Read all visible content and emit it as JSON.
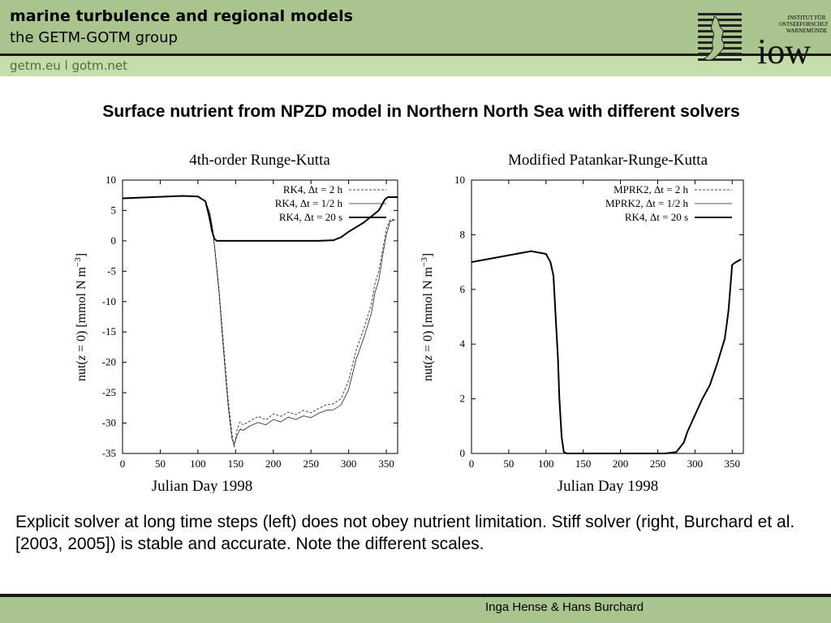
{
  "header": {
    "title": "marine turbulence and regional models",
    "subtitle": "the GETM-GOTM group",
    "links": "getm.eu   l   gotm.net"
  },
  "logo": {
    "text_line1": "INSTITUT FÜR",
    "text_line2": "OSTSEEFORSCHUNG",
    "text_line3": "WARNEMÜNDE",
    "wordmark": "iow"
  },
  "slide_title": "Surface nutrient from NPZD model in Northern North Sea with different solvers",
  "chart_data": [
    {
      "type": "line",
      "title": "4th-order Runge-Kutta",
      "xlabel": "Julian Day 1998",
      "ylabel": "nut(z = 0) [mmol N m^-3]",
      "xlim": [
        0,
        365
      ],
      "ylim": [
        -35,
        10
      ],
      "xticks": [
        0,
        50,
        100,
        150,
        200,
        250,
        300,
        350
      ],
      "yticks": [
        10,
        5,
        0,
        -5,
        -10,
        -15,
        -20,
        -25,
        -30,
        -35
      ],
      "grid": false,
      "legend_position": "top-right",
      "series": [
        {
          "name": "RK4, Δt = 2 h",
          "style": "dashed",
          "x": [
            0,
            40,
            80,
            100,
            110,
            116,
            120,
            124,
            128,
            132,
            136,
            140,
            145,
            148,
            152,
            156,
            160,
            170,
            180,
            190,
            200,
            210,
            220,
            230,
            240,
            250,
            260,
            270,
            280,
            290,
            300,
            310,
            320,
            330,
            335,
            340,
            345,
            350,
            355,
            362
          ],
          "y": [
            7.0,
            7.2,
            7.4,
            7.3,
            6.5,
            4.5,
            1.5,
            -3.0,
            -8.0,
            -14.0,
            -20.0,
            -26.0,
            -31.5,
            -34.0,
            -31.0,
            -29.8,
            -30.3,
            -29.6,
            -28.9,
            -29.5,
            -28.5,
            -28.9,
            -28.2,
            -28.6,
            -27.9,
            -28.3,
            -27.6,
            -27.0,
            -26.8,
            -26.0,
            -23.0,
            -18.0,
            -14.5,
            -10.5,
            -7.0,
            -5.0,
            -1.5,
            2.0,
            3.5,
            3.5
          ]
        },
        {
          "name": "RK4, Δt = 1/2 h",
          "style": "thin",
          "x": [
            0,
            40,
            80,
            100,
            110,
            116,
            120,
            124,
            128,
            132,
            136,
            140,
            145,
            148,
            152,
            156,
            160,
            170,
            180,
            190,
            200,
            210,
            220,
            230,
            240,
            250,
            260,
            270,
            280,
            290,
            300,
            310,
            320,
            330,
            335,
            340,
            345,
            350,
            355,
            362
          ],
          "y": [
            7.0,
            7.2,
            7.4,
            7.3,
            6.5,
            4.5,
            1.5,
            -3.5,
            -8.5,
            -15.0,
            -21.0,
            -27.0,
            -32.5,
            -33.5,
            -32.0,
            -31.0,
            -31.2,
            -30.4,
            -29.9,
            -30.3,
            -29.4,
            -29.8,
            -29.0,
            -29.4,
            -28.8,
            -29.1,
            -28.4,
            -27.9,
            -27.8,
            -27.0,
            -24.5,
            -19.5,
            -16.0,
            -12.0,
            -8.5,
            -6.5,
            -2.5,
            1.0,
            3.2,
            3.5
          ]
        },
        {
          "name": "RK4, Δt = 20 s",
          "style": "thick",
          "x": [
            0,
            40,
            80,
            100,
            110,
            115,
            119,
            122,
            125,
            140,
            180,
            220,
            260,
            280,
            290,
            300,
            320,
            340,
            348,
            352,
            365
          ],
          "y": [
            7.0,
            7.2,
            7.4,
            7.3,
            6.5,
            4.0,
            1.5,
            0.3,
            0.0,
            0.0,
            0.0,
            0.0,
            0.0,
            0.1,
            0.6,
            1.5,
            3.0,
            5.0,
            6.8,
            7.2,
            7.2
          ]
        }
      ]
    },
    {
      "type": "line",
      "title": "Modified Patankar-Runge-Kutta",
      "xlabel": "Julian Day 1998",
      "ylabel": "nut(z = 0) [mmol N m^-3]",
      "xlim": [
        0,
        365
      ],
      "ylim": [
        0,
        10
      ],
      "xticks": [
        0,
        50,
        100,
        150,
        200,
        250,
        300,
        350
      ],
      "yticks": [
        10,
        8,
        6,
        4,
        2,
        0
      ],
      "grid": false,
      "legend_position": "top-right",
      "series": [
        {
          "name": "MPRK2, Δt = 2 h",
          "style": "dashed",
          "x": [
            0,
            40,
            80,
            100,
            106,
            110,
            113,
            116,
            118,
            121,
            124,
            128,
            140,
            180,
            220,
            260,
            275,
            285,
            290,
            300,
            310,
            320,
            330,
            340,
            345,
            350,
            355,
            362
          ],
          "y": [
            7.0,
            7.2,
            7.4,
            7.3,
            7.0,
            6.5,
            5.0,
            3.5,
            2.0,
            0.6,
            0.05,
            0.0,
            0.0,
            0.0,
            0.0,
            0.0,
            0.05,
            0.4,
            0.8,
            1.4,
            2.0,
            2.5,
            3.3,
            4.2,
            5.2,
            6.9,
            7.0,
            7.1
          ]
        },
        {
          "name": "MPRK2, Δt = 1/2 h",
          "style": "thin",
          "x": [
            0,
            40,
            80,
            100,
            106,
            110,
            113,
            116,
            118,
            121,
            124,
            128,
            140,
            180,
            220,
            260,
            275,
            285,
            290,
            300,
            310,
            320,
            330,
            340,
            345,
            350,
            355,
            362
          ],
          "y": [
            7.0,
            7.2,
            7.4,
            7.3,
            7.0,
            6.5,
            5.0,
            3.5,
            2.0,
            0.6,
            0.05,
            0.0,
            0.0,
            0.0,
            0.0,
            0.0,
            0.05,
            0.4,
            0.8,
            1.4,
            2.0,
            2.5,
            3.3,
            4.2,
            5.2,
            6.9,
            7.0,
            7.1
          ]
        },
        {
          "name": "RK4, Δt = 20 s",
          "style": "thick",
          "x": [
            0,
            40,
            80,
            100,
            106,
            110,
            113,
            116,
            118,
            121,
            124,
            128,
            140,
            180,
            220,
            260,
            275,
            285,
            290,
            300,
            310,
            320,
            330,
            340,
            345,
            350,
            355,
            362
          ],
          "y": [
            7.0,
            7.2,
            7.4,
            7.3,
            7.0,
            6.5,
            5.0,
            3.5,
            2.0,
            0.6,
            0.05,
            0.0,
            0.0,
            0.0,
            0.0,
            0.0,
            0.05,
            0.4,
            0.8,
            1.4,
            2.0,
            2.5,
            3.3,
            4.2,
            5.2,
            6.9,
            7.0,
            7.1
          ]
        }
      ]
    }
  ],
  "caption": "Explicit solver at long time steps (left) does not obey nutrient limitation. Stiff solver (right, Burchard et al. [2003, 2005]) is stable and accurate. Note the different scales.",
  "footer": {
    "authors": "Inga Hense & Hans Burchard"
  }
}
